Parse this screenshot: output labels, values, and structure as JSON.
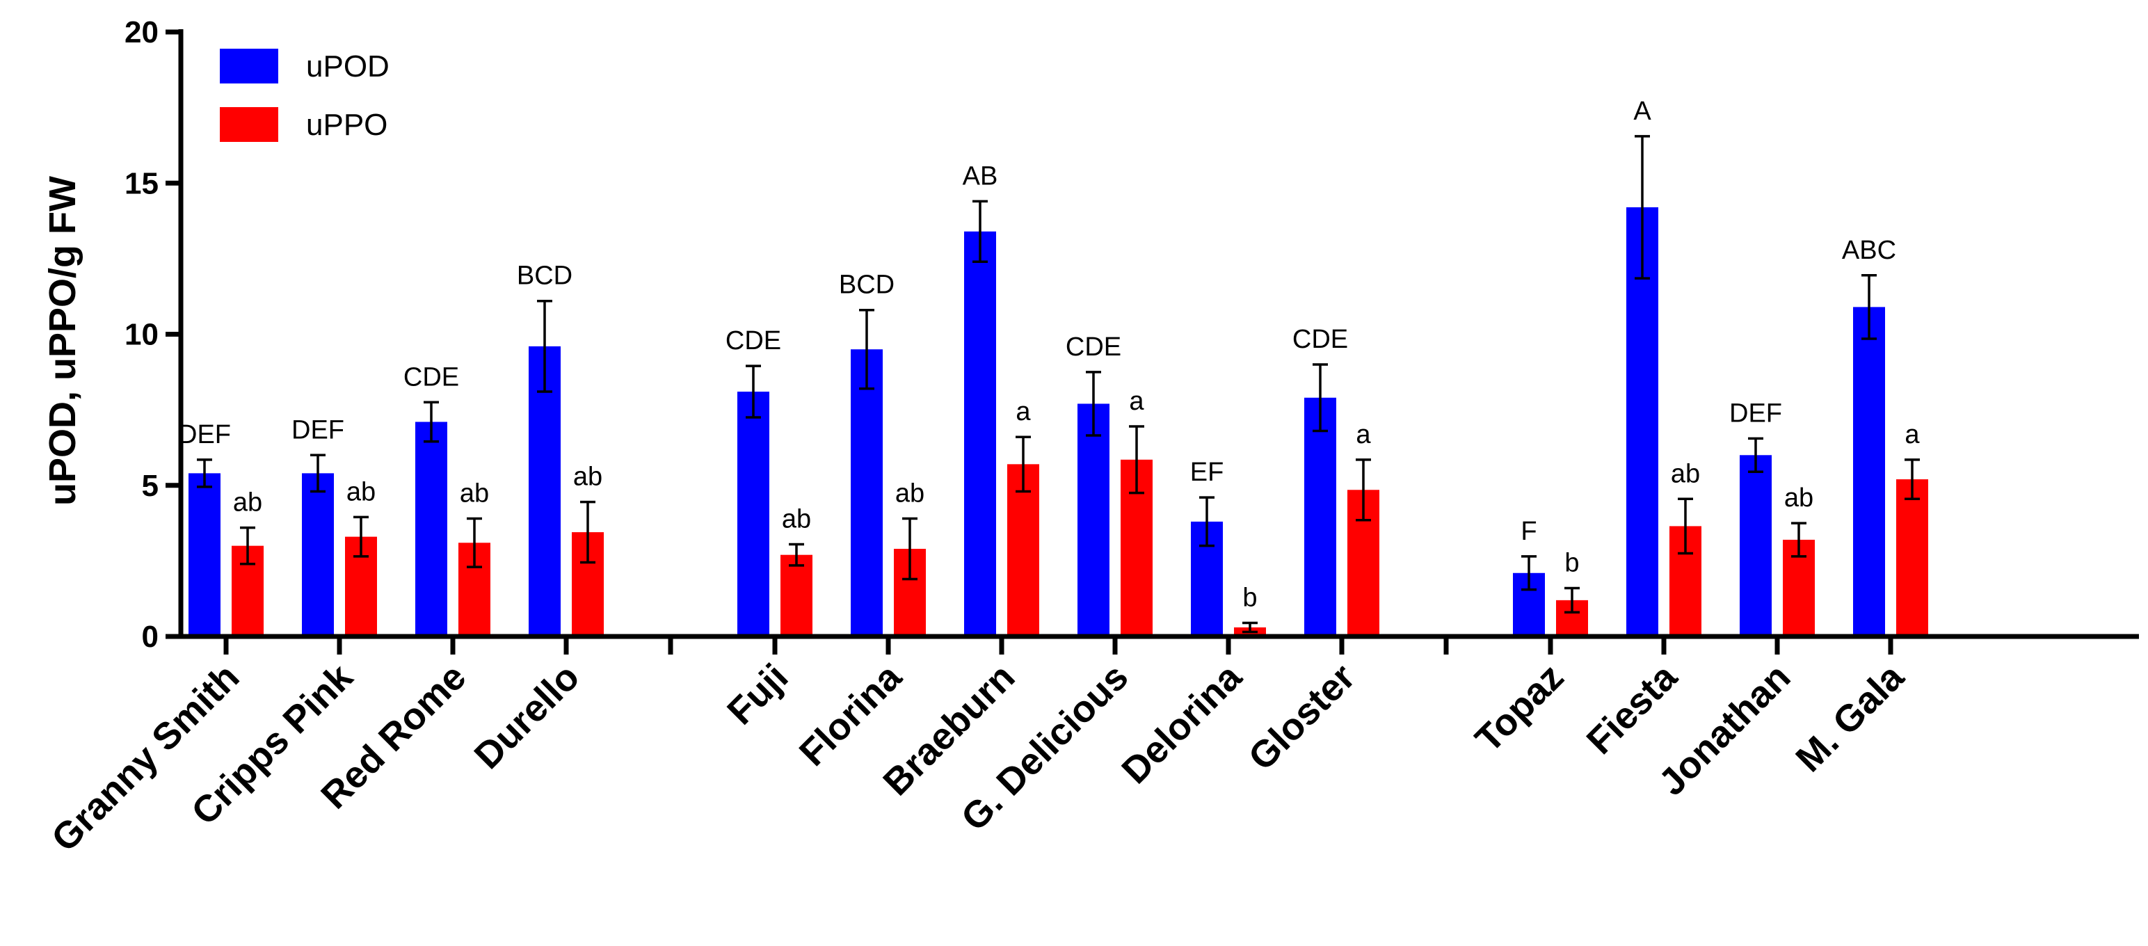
{
  "chart_data": {
    "type": "bar",
    "title": "",
    "xlabel": "",
    "ylabel": "uPOD, uPPO/g FW",
    "ylim": [
      0,
      20
    ],
    "yticks": [
      "0",
      "5",
      "10",
      "15",
      "20"
    ],
    "group_sizes": [
      4,
      6,
      4
    ],
    "categories": [
      "Granny Smith",
      "Cripps Pink",
      "Red Rome",
      "Durello",
      "Fuji",
      "Florina",
      "Braeburn",
      "G. Delicious",
      "Delorina",
      "Gloster",
      "Topaz",
      "Fiesta",
      "Jonathan",
      "M. Gala"
    ],
    "legend_position": "top-left",
    "series": [
      {
        "name": "uPOD",
        "color": "#0000ff",
        "values": [
          5.4,
          5.4,
          7.1,
          9.6,
          8.1,
          9.5,
          13.4,
          7.7,
          3.8,
          7.9,
          2.1,
          14.2,
          6.0,
          10.9
        ],
        "errors": [
          0.45,
          0.6,
          0.65,
          1.5,
          0.85,
          1.3,
          1.0,
          1.05,
          0.8,
          1.1,
          0.55,
          2.35,
          0.55,
          1.05
        ],
        "sig_labels": [
          "DEF",
          "DEF",
          "CDE",
          "BCD",
          "CDE",
          "BCD",
          "AB",
          "CDE",
          "EF",
          "CDE",
          "F",
          "A",
          "DEF",
          "ABC"
        ]
      },
      {
        "name": "uPPO",
        "color": "#ff0000",
        "values": [
          3.0,
          3.3,
          3.1,
          3.45,
          2.7,
          2.9,
          5.7,
          5.85,
          0.3,
          4.85,
          1.2,
          3.65,
          3.2,
          5.2
        ],
        "errors": [
          0.6,
          0.65,
          0.8,
          1.0,
          0.35,
          1.0,
          0.9,
          1.1,
          0.15,
          1.0,
          0.4,
          0.9,
          0.55,
          0.65
        ],
        "sig_labels": [
          "ab",
          "ab",
          "ab",
          "ab",
          "ab",
          "ab",
          "a",
          "a",
          "b",
          "a",
          "b",
          "ab",
          "ab",
          "a"
        ]
      }
    ]
  }
}
